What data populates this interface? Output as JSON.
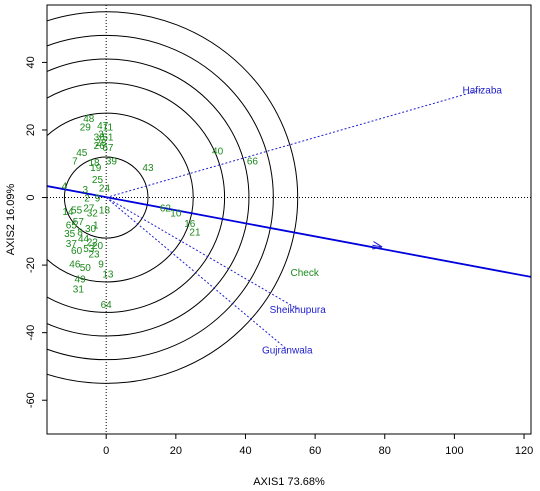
{
  "chart_data": {
    "type": "scatter",
    "xlabel": "AXIS1 73.68%",
    "ylabel": "AXIS2 16.09%",
    "xlim": [
      -17,
      122
    ],
    "ylim": [
      -70,
      57
    ],
    "xticks": [
      0,
      20,
      40,
      60,
      80,
      100,
      120
    ],
    "yticks": [
      40,
      20,
      0,
      -20,
      -40,
      -60
    ],
    "grid": false,
    "circle_radii": [
      12,
      25,
      34,
      41,
      48,
      55
    ],
    "colors": {
      "genotype": "#1a8a1a",
      "environment": "#2020d0",
      "main_axis": "#0000dd",
      "circles": "#000000"
    },
    "main_axis_line": {
      "x1": -17,
      "y1": 3.4,
      "x2": 122,
      "y2": -23.5,
      "arrow_at": {
        "x": 79,
        "y": -14.6
      }
    },
    "environments": [
      {
        "label": "Hafizaba",
        "x": 108,
        "y": 32
      },
      {
        "label": "Sheikhupura",
        "x": 55,
        "y": -33
      },
      {
        "label": "Gujranwala",
        "x": 52,
        "y": -45
      }
    ],
    "check": {
      "label": "Check",
      "x": 57,
      "y": -22
    },
    "genotypes": [
      {
        "label": "48",
        "x": -5,
        "y": 23.5
      },
      {
        "label": "29",
        "x": -6,
        "y": 21
      },
      {
        "label": "47",
        "x": -1,
        "y": 21.5
      },
      {
        "label": "11",
        "x": 0.5,
        "y": 21
      },
      {
        "label": "3",
        "x": -1.5,
        "y": 19
      },
      {
        "label": "36",
        "x": -2,
        "y": 18
      },
      {
        "label": "51",
        "x": 0.5,
        "y": 18
      },
      {
        "label": "28",
        "x": -1.5,
        "y": 16.5
      },
      {
        "label": "26",
        "x": -2,
        "y": 15.5
      },
      {
        "label": "67",
        "x": 0.5,
        "y": 15
      },
      {
        "label": "45",
        "x": -7,
        "y": 13.5
      },
      {
        "label": "7",
        "x": -9,
        "y": 11
      },
      {
        "label": "18",
        "x": -3.5,
        "y": 10.5
      },
      {
        "label": "19",
        "x": -3,
        "y": 9
      },
      {
        "label": "39",
        "x": 1.5,
        "y": 11
      },
      {
        "label": "43",
        "x": 12,
        "y": 9
      },
      {
        "label": "40",
        "x": 32,
        "y": 14
      },
      {
        "label": "66",
        "x": 42,
        "y": 11
      },
      {
        "label": "25",
        "x": -2.5,
        "y": 5.5
      },
      {
        "label": "4",
        "x": -12,
        "y": 3.5
      },
      {
        "label": "3",
        "x": -6,
        "y": 2.5
      },
      {
        "label": "24",
        "x": -0.5,
        "y": 3
      },
      {
        "label": "2",
        "x": -5.5,
        "y": 0
      },
      {
        "label": "9",
        "x": -2.5,
        "y": 0
      },
      {
        "label": "14",
        "x": -11,
        "y": -4
      },
      {
        "label": "55",
        "x": -8.5,
        "y": -3.5
      },
      {
        "label": "27",
        "x": -5,
        "y": -3
      },
      {
        "label": "32",
        "x": -4,
        "y": -4.5
      },
      {
        "label": "18",
        "x": -0.5,
        "y": -3.5
      },
      {
        "label": "62",
        "x": 17,
        "y": -3
      },
      {
        "label": "10",
        "x": 20,
        "y": -4.5
      },
      {
        "label": "16",
        "x": 24,
        "y": -7.5
      },
      {
        "label": "21",
        "x": 25.5,
        "y": -10
      },
      {
        "label": "65",
        "x": -10,
        "y": -8
      },
      {
        "label": "57",
        "x": -8,
        "y": -7
      },
      {
        "label": "30",
        "x": -4.5,
        "y": -9
      },
      {
        "label": "1",
        "x": -3,
        "y": -8
      },
      {
        "label": "35",
        "x": -10.5,
        "y": -10.5
      },
      {
        "label": "8",
        "x": -7.5,
        "y": -10
      },
      {
        "label": "44",
        "x": -6.5,
        "y": -12
      },
      {
        "label": "37",
        "x": -10,
        "y": -13.5
      },
      {
        "label": "22",
        "x": -4,
        "y": -13
      },
      {
        "label": "60",
        "x": -8.5,
        "y": -15.5
      },
      {
        "label": "53",
        "x": -5,
        "y": -15
      },
      {
        "label": "23",
        "x": -3.5,
        "y": -16.5
      },
      {
        "label": "20",
        "x": -2.5,
        "y": -14
      },
      {
        "label": "46",
        "x": -9,
        "y": -19.5
      },
      {
        "label": "50",
        "x": -6,
        "y": -20.5
      },
      {
        "label": "9",
        "x": -1.5,
        "y": -19.5
      },
      {
        "label": "13",
        "x": 0.5,
        "y": -22.5
      },
      {
        "label": "49",
        "x": -7.5,
        "y": -24
      },
      {
        "label": "31",
        "x": -8,
        "y": -27
      },
      {
        "label": "64",
        "x": 0,
        "y": -31.5
      }
    ]
  }
}
